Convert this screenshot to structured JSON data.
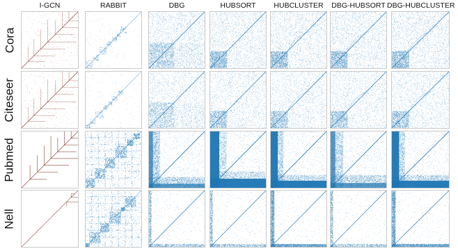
{
  "figure": {
    "columns": [
      "I-GCN",
      "RABBIT",
      "DBG",
      "HUBSORT",
      "HUBCLUSTER",
      "DBG-HUBSORT",
      "DBG-HUBCLUSTER"
    ],
    "rows": [
      "Cora",
      "Citeseer",
      "Pubmed",
      "Nell"
    ],
    "colors": {
      "igcn": "#8b3a2f",
      "reorder": "#1f77b4",
      "border": "#c9c9c9"
    }
  },
  "chart_data": {
    "type": "scatter",
    "title": "",
    "grid": false,
    "description_of_marks": "adjacency-matrix sparsity patterns (one panel per dataset × reordering method)",
    "columns": [
      "I-GCN",
      "RABBIT",
      "DBG",
      "HUBSORT",
      "HUBCLUSTER",
      "DBG-HUBSORT",
      "DBG-HUBCLUSTER"
    ],
    "rows": [
      "Cora",
      "Citeseer",
      "Pubmed",
      "Nell"
    ]
  }
}
